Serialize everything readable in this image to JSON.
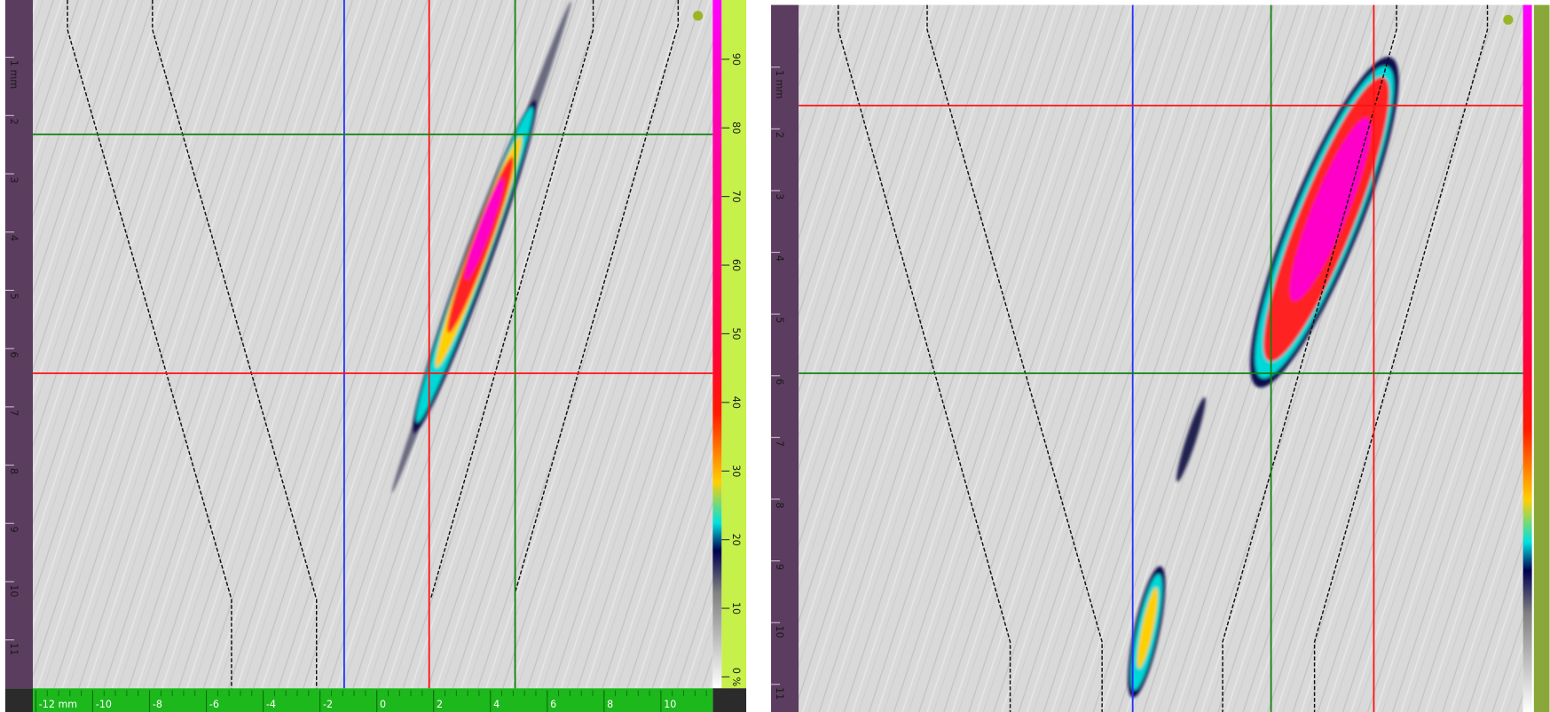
{
  "left_panel": {
    "depth_ruler": [
      "1 mm",
      "2",
      "3",
      "4",
      "5",
      "6",
      "7",
      "8",
      "9",
      "10",
      "11"
    ],
    "index_ruler": [
      "-12 mm",
      "-10",
      "-8",
      "-6",
      "-4",
      "-2",
      "0",
      "2",
      "4",
      "6",
      "8",
      "10"
    ],
    "amplitude_scale": [
      "90",
      "80",
      "70",
      "60",
      "50",
      "40",
      "30",
      "20",
      "10",
      "0 %"
    ]
  },
  "right_panel": {
    "depth_ruler": [
      "1 mm",
      "2",
      "3",
      "4",
      "5",
      "6",
      "7",
      "8",
      "9",
      "10",
      "11"
    ]
  }
}
